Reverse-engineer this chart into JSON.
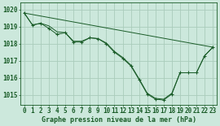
{
  "background_color": "#cce8dc",
  "grid_color": "#aaccbb",
  "line_color": "#1a5c28",
  "xlabel": "Graphe pression niveau de la mer (hPa)",
  "xlabel_fontsize": 6,
  "tick_fontsize": 5.5,
  "ylim": [
    1014.4,
    1020.4
  ],
  "xlim": [
    -0.5,
    23.5
  ],
  "yticks": [
    1015,
    1016,
    1017,
    1018,
    1019,
    1020
  ],
  "xticks": [
    0,
    1,
    2,
    3,
    4,
    5,
    6,
    7,
    8,
    9,
    10,
    11,
    12,
    13,
    14,
    15,
    16,
    17,
    18,
    19,
    20,
    21,
    22,
    23
  ],
  "series_main_x": [
    0,
    1,
    2,
    3,
    4,
    5,
    6,
    7,
    8,
    9,
    10,
    11,
    12,
    13,
    14,
    15,
    16,
    17,
    18,
    19,
    20,
    21,
    22,
    23
  ],
  "series_main_y": [
    1019.8,
    1019.1,
    1019.2,
    1018.9,
    1018.55,
    1018.65,
    1018.1,
    1018.1,
    1018.35,
    1018.3,
    1018.0,
    1017.5,
    1017.15,
    1016.7,
    1015.9,
    1015.05,
    1014.75,
    1014.7,
    1015.05,
    1016.3,
    1016.3,
    1016.3,
    1017.3,
    1017.8
  ],
  "series_trend_x": [
    0,
    23
  ],
  "series_trend_y": [
    1019.8,
    1017.8
  ],
  "series_upper_x": [
    0,
    1,
    2,
    3,
    4,
    5,
    6,
    7,
    8,
    9,
    10,
    11,
    12,
    13,
    14,
    15,
    16,
    17,
    18,
    19,
    20,
    21,
    22,
    23
  ],
  "series_upper_y": [
    1019.8,
    1019.1,
    1019.2,
    1019.05,
    1018.7,
    1018.65,
    1018.15,
    1018.15,
    1018.35,
    1018.3,
    1018.05,
    1017.55,
    1017.2,
    1016.75,
    1015.95,
    1015.1,
    1014.8,
    1014.75,
    1015.1,
    1016.3,
    1016.3,
    1016.3,
    1017.3,
    1017.8
  ]
}
